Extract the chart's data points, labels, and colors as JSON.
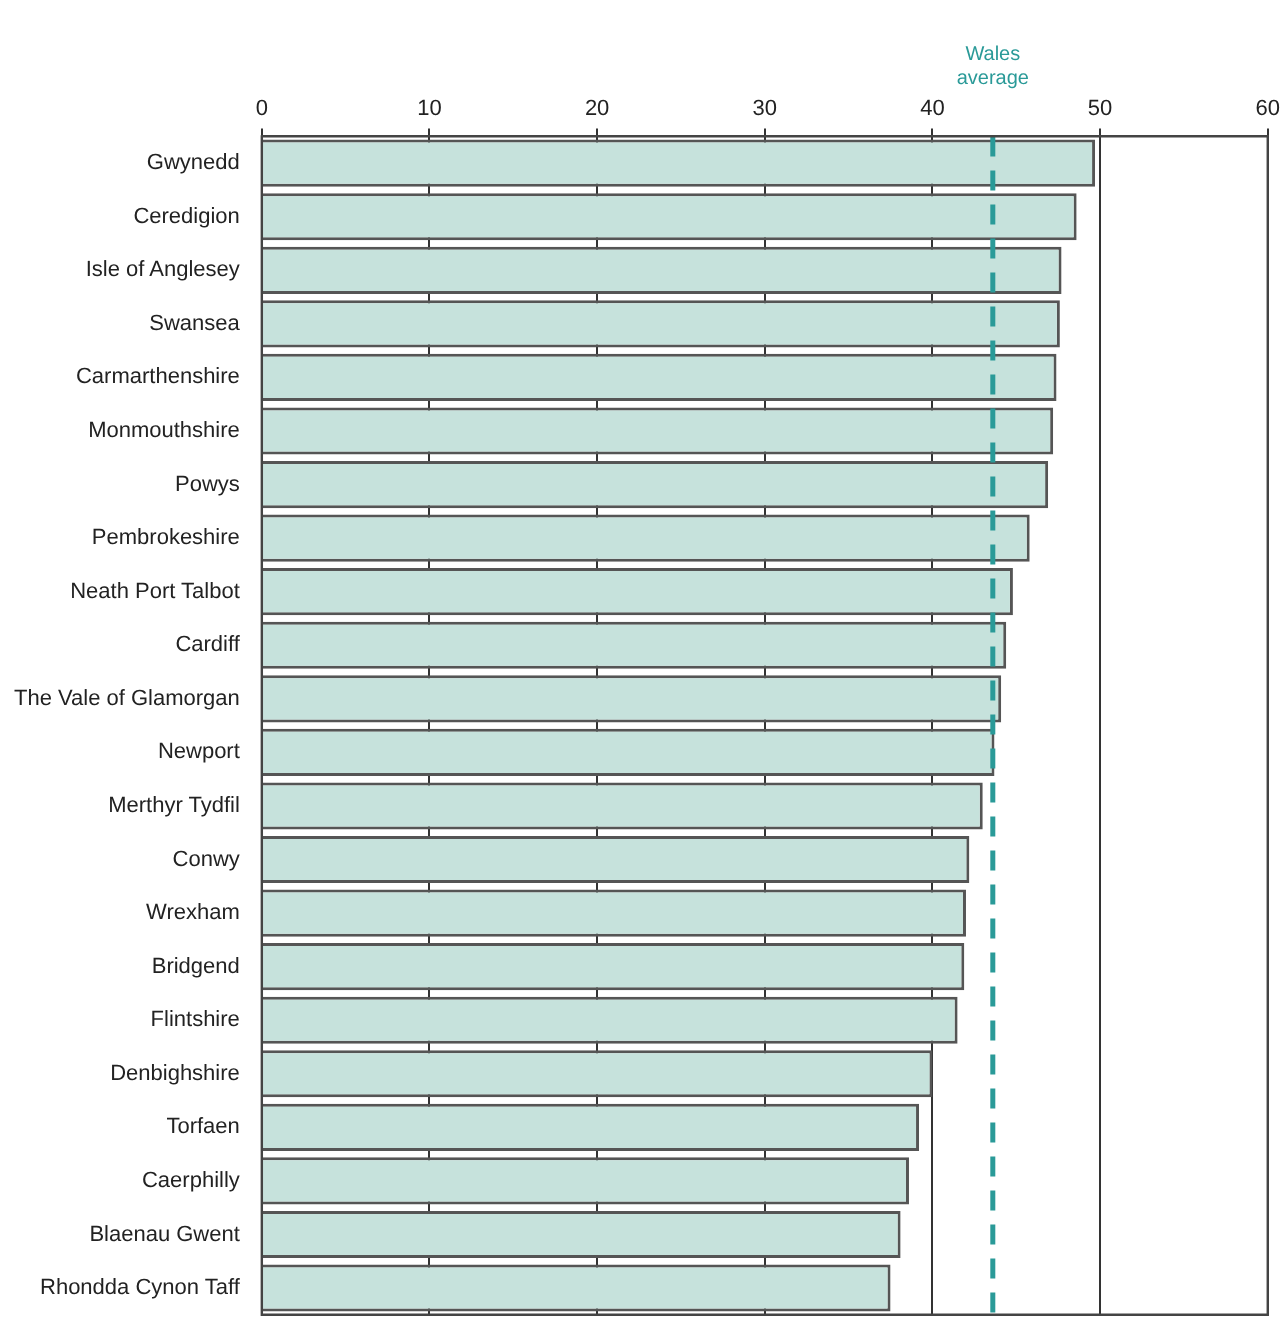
{
  "chart_data": {
    "type": "bar",
    "orientation": "horizontal",
    "categories": [
      "Gwynedd",
      "Ceredigion",
      "Isle of Anglesey",
      "Swansea",
      "Carmarthenshire",
      "Monmouthshire",
      "Powys",
      "Pembrokeshire",
      "Neath Port Talbot",
      "Cardiff",
      "The Vale of Glamorgan",
      "Newport",
      "Merthyr Tydfil",
      "Conwy",
      "Wrexham",
      "Bridgend",
      "Flintshire",
      "Denbighshire",
      "Torfaen",
      "Caerphilly",
      "Blaenau Gwent",
      "Rhondda Cynon Taff"
    ],
    "values": [
      49.7,
      48.6,
      47.7,
      47.6,
      47.4,
      47.2,
      46.9,
      45.8,
      44.8,
      44.4,
      44.1,
      43.7,
      43.0,
      42.2,
      42.0,
      41.9,
      41.5,
      40.0,
      39.2,
      38.6,
      38.1,
      37.5
    ],
    "color": "#c6e2dc",
    "xlim": [
      0,
      60
    ],
    "xticks": [
      0,
      10,
      20,
      30,
      40,
      50,
      60
    ],
    "grid": "x",
    "legend": false,
    "ref_lines": [
      {
        "axis": "x",
        "value": 43.6,
        "label": "Wales average",
        "color": "#2a9a98",
        "line_style": "dashed"
      }
    ]
  }
}
